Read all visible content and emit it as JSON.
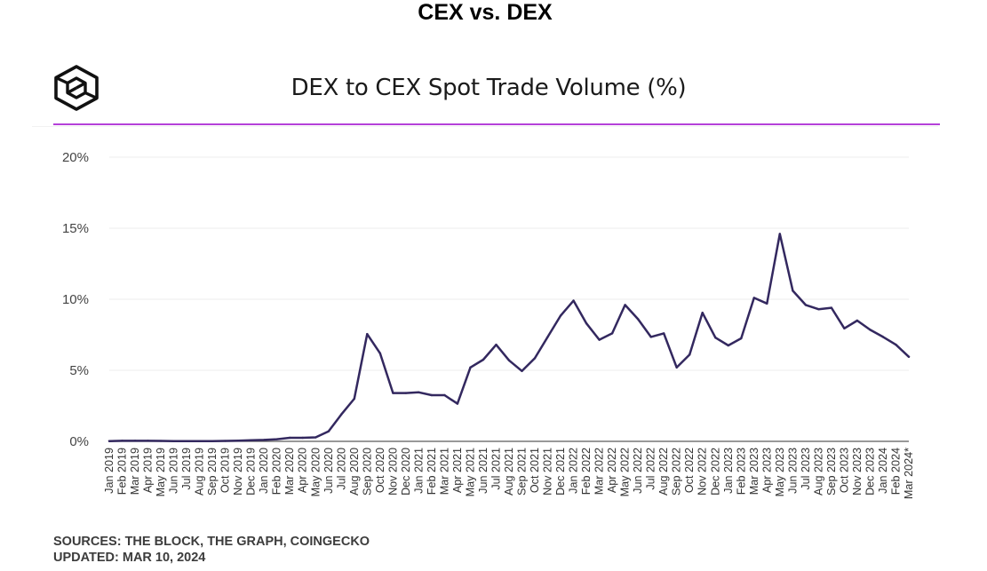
{
  "page_title": "CEX vs. DEX",
  "chart_title": "DEX to CEX Spot Trade Volume (%)",
  "logo_icon": "the-block-cube-logo",
  "footer": {
    "sources": "SOURCES: THE BLOCK, THE GRAPH, COINGECKO",
    "updated": "UPDATED: MAR 10, 2024"
  },
  "colors": {
    "line": "#33285f",
    "accent": "#b541d9",
    "axis": "#5a5a5a",
    "grid": "#eeeeee"
  },
  "chart_data": {
    "type": "line",
    "title": "DEX to CEX Spot Trade Volume (%)",
    "xlabel": "",
    "ylabel": "",
    "ylim": [
      0,
      20
    ],
    "yticks": [
      0,
      5,
      10,
      15,
      20
    ],
    "ytick_labels": [
      "0%",
      "5%",
      "10%",
      "15%",
      "20%"
    ],
    "grid": true,
    "categories": [
      "Jan 2019",
      "Feb 2019",
      "Mar 2019",
      "Apr 2019",
      "May 2019",
      "Jun 2019",
      "Jul 2019",
      "Aug 2019",
      "Sep 2019",
      "Oct 2019",
      "Nov 2019",
      "Dec 2019",
      "Jan 2020",
      "Feb 2020",
      "Mar 2020",
      "Apr 2020",
      "May 2020",
      "Jun 2020",
      "Jul 2020",
      "Aug 2020",
      "Sep 2020",
      "Oct 2020",
      "Nov 2020",
      "Dec 2020",
      "Jan 2021",
      "Feb 2021",
      "Mar 2021",
      "Apr 2021",
      "May 2021",
      "Jun 2021",
      "Jul 2021",
      "Aug 2021",
      "Sep 2021",
      "Oct 2021",
      "Nov 2021",
      "Dec 2021",
      "Jan 2022",
      "Feb 2022",
      "Mar 2022",
      "Apr 2022",
      "May 2022",
      "Jun 2022",
      "Jul 2022",
      "Aug 2022",
      "Sep 2022",
      "Oct 2022",
      "Nov 2022",
      "Dec 2022",
      "Jan 2023",
      "Feb 2023",
      "Mar 2023",
      "Apr 2023",
      "May 2023",
      "Jun 2023",
      "Jul 2023",
      "Aug 2023",
      "Sep 2023",
      "Oct 2023",
      "Nov 2023",
      "Dec 2023",
      "Jan 2024",
      "Feb 2024",
      "Mar 2024*"
    ],
    "values": [
      0.02,
      0.04,
      0.04,
      0.04,
      0.03,
      0.02,
      0.02,
      0.02,
      0.02,
      0.03,
      0.05,
      0.08,
      0.1,
      0.15,
      0.25,
      0.25,
      0.28,
      0.7,
      1.9,
      3.0,
      7.55,
      6.2,
      3.4,
      3.4,
      3.45,
      3.25,
      3.25,
      2.65,
      5.2,
      5.75,
      6.8,
      5.7,
      4.95,
      5.85,
      7.35,
      8.85,
      9.9,
      8.3,
      7.15,
      7.6,
      9.6,
      8.6,
      7.35,
      7.6,
      5.2,
      6.1,
      9.05,
      7.3,
      6.75,
      7.25,
      10.1,
      9.7,
      14.6,
      10.6,
      9.6,
      9.3,
      9.4,
      7.95,
      8.5,
      7.85,
      7.35,
      6.8,
      5.95
    ],
    "series": [
      {
        "values_ref": "values"
      }
    ]
  }
}
